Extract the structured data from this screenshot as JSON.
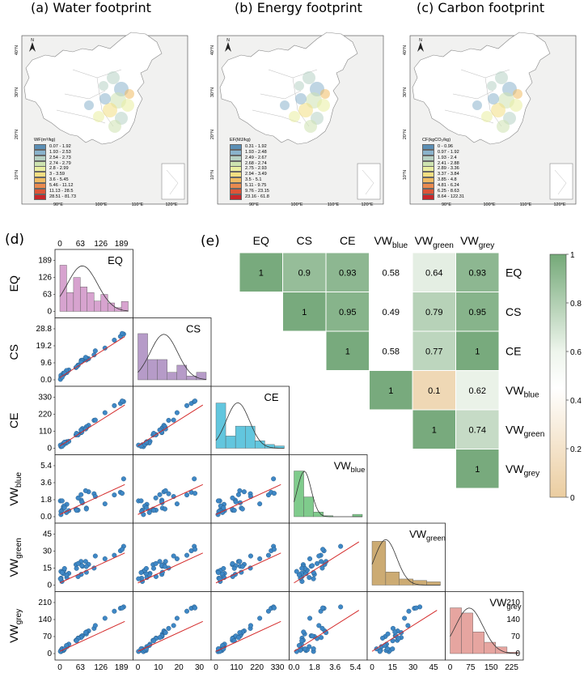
{
  "maps": [
    {
      "panel": "(a)",
      "title": "Water footprint",
      "legend_title": "WF(m³/kg)",
      "legend": [
        "0.07 - 1.92",
        "1.93 - 2.53",
        "2.54 - 2.73",
        "2.74 - 2.79",
        "2.8 - 2.99",
        "3 - 3.59",
        "3.6 - 5.45",
        "5.46 - 11.12",
        "11.13 - 28.5",
        "28.51 - 81.73"
      ]
    },
    {
      "panel": "(b)",
      "title": "Energy footprint",
      "legend_title": "EF(MJ/kg)",
      "legend": [
        "0.31 - 1.92",
        "1.93 - 2.48",
        "2.49 - 2.67",
        "2.68 - 2.74",
        "2.75 - 2.93",
        "2.94 - 3.49",
        "3.5 - 5.1",
        "5.11 - 9.75",
        "9.76 - 23.15",
        "23.16 - 61.8"
      ]
    },
    {
      "panel": "(c)",
      "title": "Carbon footprint",
      "legend_title": "CF(kgCO₂/kg)",
      "legend": [
        "0 - 0.96",
        "0.97 - 1.92",
        "1.93 - 2.4",
        "2.41 - 2.88",
        "2.89 - 3.36",
        "3.37 - 3.84",
        "3.85 - 4.8",
        "4.81 - 6.24",
        "6.25 - 8.63",
        "8.64 - 122.31"
      ]
    }
  ],
  "map_colors": [
    "#5b8fb5",
    "#8ab3cc",
    "#b7d1c4",
    "#cde2b0",
    "#e9eea0",
    "#f3df82",
    "#f0bb63",
    "#e98a4f",
    "#dd5537",
    "#c8262a"
  ],
  "map_axes": {
    "lat": [
      "40°N",
      "30°N",
      "20°N",
      "10°N"
    ],
    "lon": [
      "90°E",
      "100°E",
      "110°E",
      "120°E"
    ],
    "north": "N"
  },
  "chart_data": [
    {
      "type": "scatter-matrix",
      "panel": "(d)",
      "variables": [
        {
          "id": "EQ",
          "label": "EQ",
          "ticks": [
            "0",
            "63",
            "126",
            "189"
          ],
          "max": 189
        },
        {
          "id": "CS",
          "label": "CS",
          "ticks": [
            "0.0",
            "9.6",
            "19.2",
            "28.8"
          ],
          "max": 28.8,
          "ticks_x": [
            "0",
            "10",
            "20",
            "30"
          ]
        },
        {
          "id": "CE",
          "label": "CE",
          "ticks": [
            "0",
            "110",
            "220",
            "330"
          ],
          "max": 330
        },
        {
          "id": "VWblue",
          "label": "VW",
          "sub": "blue",
          "ticks": [
            "0.0",
            "1.8",
            "3.6",
            "5.4"
          ],
          "max": 5.4
        },
        {
          "id": "VWgreen",
          "label": "VW",
          "sub": "green",
          "ticks": [
            "0",
            "15",
            "30",
            "45"
          ],
          "max": 45
        },
        {
          "id": "VWgrey",
          "label": "VW",
          "sub": "grey",
          "ticks": [
            "0",
            "70",
            "140",
            "210"
          ],
          "max": 210,
          "ticks_x": [
            "0",
            "75",
            "150",
            "225"
          ]
        }
      ],
      "eq_top_ticks": [
        "0",
        "63",
        "126",
        "189"
      ],
      "histograms": {
        "EQ": [
          0.98,
          0.4,
          0.72,
          0.52,
          0.4,
          0.22,
          0.36,
          0.18,
          0.08,
          0.21
        ],
        "CS": [
          0.98,
          0.43,
          0.43,
          0.16,
          0.31,
          0.08,
          0.16
        ],
        "CE": [
          0.96,
          0.26,
          0.47,
          0.47,
          0.16,
          0.08,
          0.05
        ],
        "VWblue": [
          0.97,
          0.42,
          0.1,
          0.02,
          0.0,
          0.0,
          0.05
        ],
        "VWgreen": [
          0.93,
          0.28,
          0.13,
          0.1,
          0.07
        ],
        "VWgrey": [
          0.97,
          0.86,
          0.46,
          0.24,
          0.14,
          0.03
        ]
      }
    },
    {
      "type": "heatmap",
      "panel": "(e)",
      "labels": [
        {
          "t": "EQ"
        },
        {
          "t": "CS"
        },
        {
          "t": "CE"
        },
        {
          "t": "VW",
          "s": "blue"
        },
        {
          "t": "VW",
          "s": "green"
        },
        {
          "t": "VW",
          "s": "grey"
        }
      ],
      "matrix": [
        [
          "1",
          "0.9",
          "0.93",
          "0.58",
          "0.64",
          "0.93"
        ],
        [
          null,
          "1",
          "0.95",
          "0.49",
          "0.79",
          "0.95"
        ],
        [
          null,
          null,
          "1",
          "0.58",
          "0.77",
          "1"
        ],
        [
          null,
          null,
          null,
          "1",
          "0.1",
          "0.62"
        ],
        [
          null,
          null,
          null,
          null,
          "1",
          "0.74"
        ],
        [
          null,
          null,
          null,
          null,
          null,
          "1"
        ]
      ],
      "colorbar": {
        "min": 0,
        "max": 1,
        "ticks": [
          "0",
          "0.2",
          "0.4",
          "0.6",
          "0.8",
          "1"
        ]
      }
    }
  ]
}
